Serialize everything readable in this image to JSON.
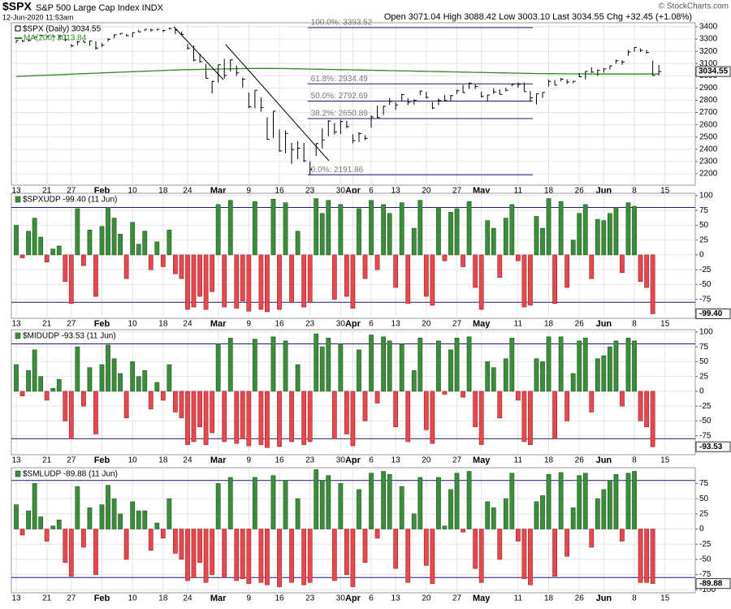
{
  "header": {
    "symbol": "$SPX",
    "name": "S&P 500 Large Cap Index INDX",
    "timestamp": "12-Jun-2020 11:53am",
    "quote": "Open 3071.04  High 3088.42  Low 3003.10  Last 3034.55  Chg +32.45 (+1.08%)",
    "credit": "© StockCharts.com"
  },
  "x_axis": {
    "categories": [
      "13",
      null,
      null,
      null,
      null,
      "21",
      null,
      null,
      null,
      "27",
      null,
      null,
      null,
      null,
      "Feb",
      null,
      null,
      null,
      null,
      "10",
      null,
      null,
      null,
      null,
      "18",
      null,
      null,
      null,
      "24",
      null,
      null,
      null,
      null,
      "Mar",
      null,
      null,
      null,
      null,
      "9",
      null,
      null,
      null,
      null,
      "16",
      null,
      null,
      null,
      null,
      "23",
      null,
      null,
      null,
      null,
      "30",
      null,
      "Apr",
      null,
      null,
      "6",
      null,
      null,
      null,
      "13",
      null,
      null,
      null,
      null,
      "20",
      null,
      null,
      null,
      null,
      "27",
      null,
      null,
      null,
      "May",
      null,
      null,
      null,
      null,
      null,
      "11",
      null,
      null,
      null,
      null,
      "18",
      null,
      null,
      null,
      null,
      "26",
      null,
      null,
      null,
      "Jun",
      null,
      null,
      null,
      null,
      "8",
      null,
      null,
      null,
      null,
      "15"
    ]
  },
  "chart_data": [
    {
      "type": "ohlc",
      "ylim": [
        2107,
        3433
      ],
      "yticks": [
        2200,
        2300,
        2400,
        2500,
        2600,
        2700,
        2800,
        2900,
        3000,
        3100,
        3200,
        3300,
        3400
      ],
      "grid": true,
      "series": [
        {
          "name": "$SPX (Daily) 3034.55",
          "color": "#000000",
          "values": [
            3288,
            3283,
            3289,
            3317,
            3330,
            3321,
            3321,
            3326,
            3295,
            3244,
            3276,
            3273,
            3284,
            3226,
            3249,
            3298,
            3334,
            3346,
            3328,
            3352,
            3358,
            3379,
            3374,
            3380,
            3370,
            3386,
            3373,
            3338,
            3226,
            3128,
            3116,
            2979,
            2954,
            3090,
            3003,
            3130,
            3024,
            2972,
            2747,
            2882,
            2741,
            2481,
            2711,
            2386,
            2529,
            2398,
            2409,
            2305,
            2237,
            2447,
            2476,
            2630,
            2541,
            2627,
            2585,
            2471,
            2527,
            2489,
            2664,
            2659,
            2750,
            2790,
            2762,
            2846,
            2783,
            2800,
            2875,
            2823,
            2737,
            2799,
            2798,
            2837,
            2878,
            2863,
            2940,
            2912,
            2831,
            2843,
            2868,
            2848,
            2882,
            2930,
            2930,
            2870,
            2820,
            2853,
            2864,
            2954,
            2923,
            2972,
            2949,
            2955,
            2992,
            3036,
            3030,
            3044,
            3056,
            3081,
            3123,
            3112,
            3194,
            3232,
            3207,
            3190,
            3002,
            3034.55,
            null
          ],
          "high": [
            3289,
            3295,
            3298,
            3317,
            3330,
            3329,
            3338,
            3326,
            3334,
            3259,
            3285,
            3293,
            3285,
            3282,
            3268,
            3306,
            3338,
            3347,
            3342,
            3352,
            3375,
            3382,
            3385,
            3381,
            3375,
            3393,
            3385,
            3360,
            3259,
            3247,
            3182,
            3097,
            2959,
            3090,
            3137,
            3130,
            3083,
            2985,
            2863,
            2882,
            2825,
            2661,
            2711,
            2562,
            2553,
            2453,
            2467,
            2453,
            2300,
            2449,
            2572,
            2637,
            2615,
            2641,
            2632,
            2522,
            2540,
            2515,
            2677,
            2756,
            2754,
            2818,
            2783,
            2852,
            2816,
            2807,
            2880,
            2868,
            2785,
            2816,
            2844,
            2843,
            2888,
            2925,
            2945,
            2930,
            2870,
            2844,
            2898,
            2891,
            2902,
            2930,
            2946,
            2945,
            2875,
            2853,
            2865,
            2969,
            2965,
            2981,
            2971,
            2957,
            3021,
            3036,
            3068,
            3050,
            3063,
            3081,
            3131,
            3128,
            3212,
            3232,
            3223,
            3211,
            3123,
            3088.42,
            null
          ],
          "low": [
            3268,
            3276,
            3280,
            3302,
            3320,
            3307,
            3320,
            3302,
            3281,
            3234,
            3250,
            3271,
            3243,
            3214,
            3236,
            3280,
            3306,
            3335,
            3322,
            3314,
            3356,
            3365,
            3360,
            3368,
            3356,
            3378,
            3339,
            3329,
            3214,
            3118,
            3108,
            2977,
            2856,
            2945,
            2976,
            3035,
            2999,
            2901,
            2734,
            2734,
            2707,
            2478,
            2492,
            2380,
            2367,
            2281,
            2320,
            2295,
            2192,
            2345,
            2407,
            2505,
            2521,
            2524,
            2571,
            2448,
            2459,
            2474,
            2575,
            2657,
            2680,
            2762,
            2721,
            2795,
            2761,
            2765,
            2842,
            2814,
            2728,
            2761,
            2795,
            2794,
            2852,
            2860,
            2892,
            2892,
            2822,
            2797,
            2852,
            2847,
            2873,
            2913,
            2903,
            2870,
            2793,
            2766,
            2820,
            2913,
            2923,
            2954,
            2933,
            2938,
            2988,
            2970,
            3024,
            2999,
            3025,
            3051,
            3098,
            3091,
            3163,
            3197,
            3193,
            3181,
            2999,
            3003.1,
            null
          ]
        },
        {
          "name": "MA(200) 3013.84",
          "color": "#2e8b22",
          "values": [
            2995,
            2997,
            2999,
            3001,
            3003,
            3005,
            3007,
            3009,
            3011,
            3013,
            3015,
            3017,
            3019,
            3021,
            3023,
            3025,
            3027,
            3029,
            3031,
            3033,
            3035,
            3037,
            3039,
            3041,
            3043,
            3045,
            3047,
            3049,
            3050,
            3051,
            3052,
            3053,
            3054,
            3055,
            3056,
            3057,
            3058,
            3059,
            3059,
            3060,
            3060,
            3060,
            3060,
            3059,
            3059,
            3058,
            3057,
            3056,
            3055,
            3054,
            3053,
            3052,
            3051,
            3050,
            3049,
            3048,
            3047,
            3046,
            3045,
            3044,
            3043,
            3042,
            3041,
            3040,
            3039,
            3038,
            3037,
            3036,
            3035,
            3034,
            3033,
            3032,
            3031,
            3030,
            3029,
            3028,
            3027,
            3026,
            3025,
            3024,
            3023,
            3022,
            3021,
            3020,
            3019,
            3018,
            3018,
            3017,
            3017,
            3016,
            3016,
            3015,
            3015,
            3015,
            3014,
            3014,
            3014,
            3014,
            3014,
            3014,
            3014,
            3014,
            3014,
            3014,
            3014,
            3013.84,
            null
          ]
        }
      ],
      "fib": [
        {
          "label": "100.0%: 3393.52",
          "value": 3393.52
        },
        {
          "label": "61.8%: 2934.49",
          "value": 2934.49
        },
        {
          "label": "50.0%: 2792.69",
          "value": 2792.69
        },
        {
          "label": "38.2%: 2650.89",
          "value": 2650.89
        },
        {
          "label": "0.0%: 2191.86",
          "value": 2191.86
        }
      ],
      "fib_color": "#1a1a7a"
    },
    {
      "type": "bar",
      "title": "$SPXUDP -99.40 (11 Jun)",
      "last_label": "-99.40",
      "up_color": "#3d8b3d",
      "down_color": "#e24a4f",
      "levels": [
        80,
        -80
      ],
      "ylim": [
        -107,
        104
      ],
      "yticks": [
        100,
        75,
        50,
        25,
        0,
        -25,
        -50,
        -75
      ],
      "grid": true,
      "values": [
        50,
        -5,
        40,
        62,
        30,
        -12,
        10,
        15,
        -45,
        -82,
        78,
        -18,
        42,
        -70,
        48,
        80,
        62,
        35,
        -40,
        55,
        18,
        40,
        -25,
        22,
        -20,
        42,
        -32,
        -40,
        -92,
        -88,
        -70,
        -92,
        -62,
        85,
        -88,
        92,
        -90,
        -78,
        -95,
        90,
        -92,
        -96,
        94,
        -92,
        88,
        -80,
        40,
        -88,
        -80,
        95,
        70,
        92,
        -75,
        85,
        -70,
        -90,
        78,
        -40,
        92,
        -25,
        85,
        70,
        -55,
        88,
        -82,
        45,
        92,
        -70,
        -85,
        80,
        -10,
        72,
        78,
        -20,
        90,
        -55,
        -92,
        58,
        45,
        -38,
        62,
        85,
        -10,
        -88,
        -85,
        65,
        45,
        95,
        -82,
        90,
        -55,
        25,
        70,
        85,
        -40,
        60,
        58,
        70,
        80,
        -30,
        88,
        82,
        -45,
        -55,
        -99.4,
        null,
        null
      ]
    },
    {
      "type": "bar",
      "title": "$MIDUDP -93.53 (11 Jun)",
      "last_label": "-93.53",
      "up_color": "#3d8b3d",
      "down_color": "#e24a4f",
      "levels": [
        80,
        -80
      ],
      "ylim": [
        -107,
        104
      ],
      "yticks": [
        100,
        75,
        50,
        25,
        0,
        -25,
        -50,
        -75
      ],
      "grid": true,
      "values": [
        45,
        -8,
        35,
        70,
        25,
        -15,
        5,
        20,
        -50,
        -80,
        75,
        -25,
        40,
        -72,
        45,
        78,
        55,
        30,
        -45,
        50,
        25,
        35,
        -30,
        15,
        -15,
        45,
        -35,
        -45,
        -90,
        -85,
        -60,
        -90,
        -70,
        80,
        -85,
        90,
        -88,
        -80,
        -92,
        88,
        -90,
        -95,
        92,
        -93,
        85,
        -85,
        45,
        -90,
        -85,
        97,
        75,
        90,
        -80,
        80,
        -72,
        -92,
        70,
        -50,
        95,
        -20,
        92,
        85,
        -60,
        80,
        -85,
        35,
        90,
        -65,
        -88,
        85,
        -5,
        70,
        90,
        -10,
        92,
        -60,
        -90,
        50,
        40,
        -45,
        55,
        90,
        -15,
        -85,
        -90,
        55,
        50,
        92,
        -80,
        92,
        -50,
        30,
        85,
        90,
        -35,
        55,
        60,
        75,
        85,
        -25,
        90,
        85,
        -50,
        -60,
        -93.53,
        null,
        null
      ]
    },
    {
      "type": "bar",
      "title": "$SMLUDP -89.88 (11 Jun)",
      "last_label": "-89.88",
      "up_color": "#3d8b3d",
      "down_color": "#e24a4f",
      "levels": [
        80,
        -80
      ],
      "ylim": [
        -105,
        101
      ],
      "yticks": [
        75,
        50,
        25,
        0,
        -25,
        -50,
        -75,
        -100
      ],
      "grid": true,
      "values": [
        40,
        -10,
        30,
        75,
        20,
        -20,
        5,
        15,
        -55,
        -78,
        70,
        -30,
        35,
        -75,
        40,
        72,
        50,
        25,
        -50,
        45,
        30,
        30,
        -35,
        10,
        -15,
        50,
        -40,
        -50,
        -85,
        -80,
        -55,
        -88,
        -75,
        75,
        -80,
        85,
        -85,
        -82,
        -90,
        85,
        -88,
        -92,
        88,
        -95,
        80,
        -88,
        50,
        -92,
        -88,
        98,
        80,
        88,
        -85,
        75,
        -75,
        -95,
        65,
        -55,
        92,
        -15,
        95,
        90,
        -65,
        70,
        -88,
        25,
        85,
        -60,
        -90,
        85,
        5,
        65,
        92,
        -5,
        95,
        -65,
        -88,
        45,
        35,
        -50,
        50,
        92,
        -20,
        -82,
        -92,
        45,
        55,
        90,
        -78,
        93,
        -45,
        35,
        88,
        92,
        -30,
        50,
        65,
        80,
        90,
        -20,
        92,
        95,
        -88,
        -88,
        -89.88,
        null,
        null
      ]
    }
  ]
}
